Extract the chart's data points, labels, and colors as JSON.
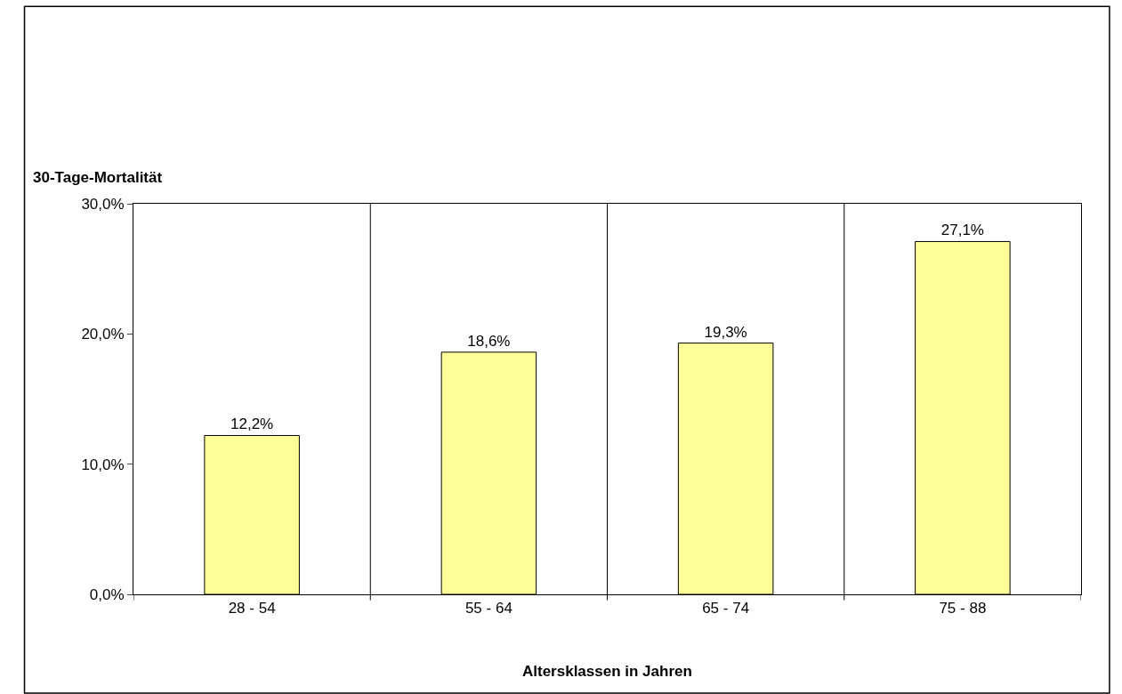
{
  "chart_data": {
    "type": "bar",
    "ylabel": "30-Tage-Mortalität",
    "xlabel": "Altersklassen in Jahren",
    "categories": [
      "28 - 54",
      "55 - 64",
      "65 - 74",
      "75 - 88"
    ],
    "values": [
      12.2,
      18.6,
      19.3,
      27.1
    ],
    "value_labels": [
      "12,2%",
      "18,6%",
      "19,3%",
      "27,1%"
    ],
    "color": "#ffff99",
    "ylim": [
      0,
      30
    ],
    "yticks": [
      {
        "value": 0,
        "label": "0,0%"
      },
      {
        "value": 10,
        "label": "10,0%"
      },
      {
        "value": 20,
        "label": "20,0%"
      },
      {
        "value": 30,
        "label": "30,0%"
      }
    ],
    "grid": "x",
    "legend": false
  }
}
